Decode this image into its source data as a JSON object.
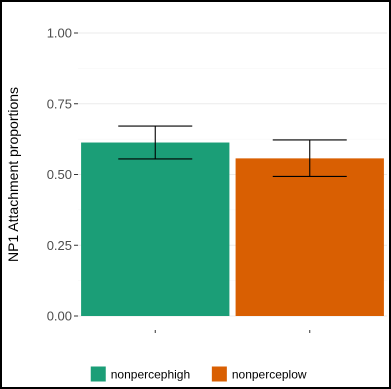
{
  "chart_data": {
    "type": "bar",
    "title": "",
    "xlabel": "",
    "ylabel": "NP1 Attachment proportions",
    "ylim": [
      0,
      1
    ],
    "yticks": [
      {
        "value": 0,
        "label": "0.00"
      },
      {
        "value": 0.25,
        "label": "0.25"
      },
      {
        "value": 0.5,
        "label": "0.50"
      },
      {
        "value": 0.75,
        "label": "0.75"
      },
      {
        "value": 1,
        "label": "1.00"
      }
    ],
    "categories": [
      "nonpercephigh",
      "nonperceplow"
    ],
    "values": [
      0.613,
      0.557
    ],
    "error_low": [
      0.555,
      0.493
    ],
    "error_high": [
      0.671,
      0.622
    ],
    "colors": [
      "#1b9e77",
      "#d95f02"
    ],
    "grid": true,
    "legend_position": "bottom",
    "legend": [
      {
        "name": "nonpercephigh",
        "color": "#1b9e77"
      },
      {
        "name": "nonperceplow",
        "color": "#d95f02"
      }
    ]
  }
}
